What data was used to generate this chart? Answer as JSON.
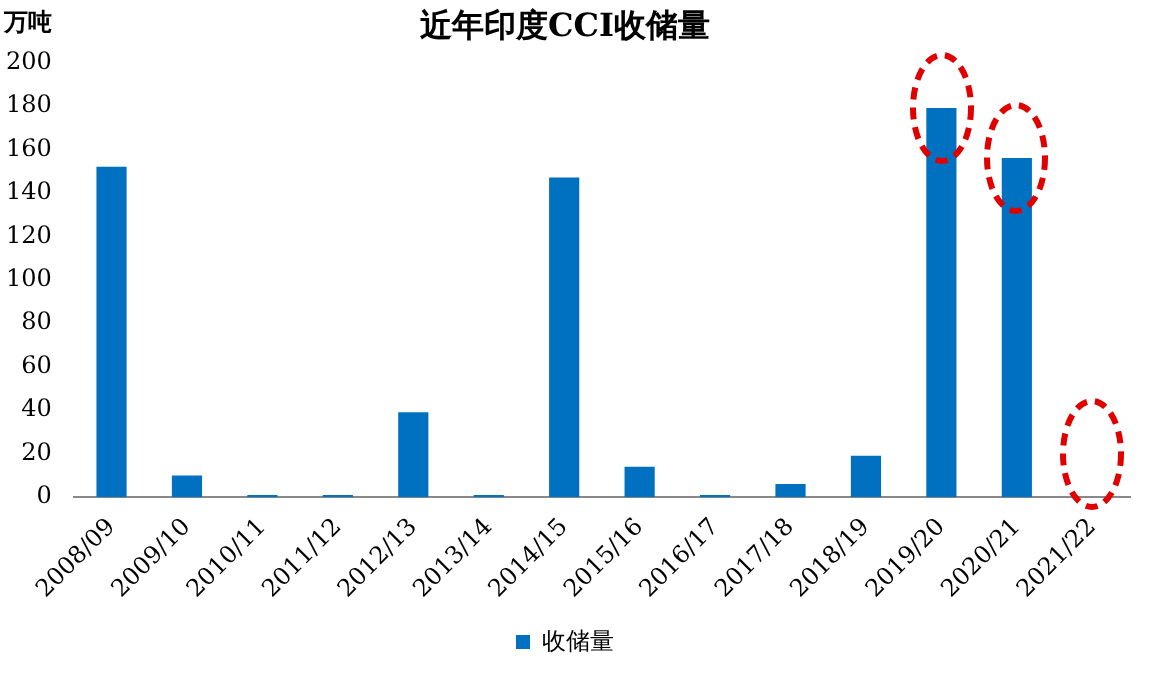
{
  "chart_data": {
    "type": "bar",
    "title": "近年印度CCI收储量",
    "ylabel": "万吨",
    "categories": [
      "2008/09",
      "2009/10",
      "2010/11",
      "2011/12",
      "2012/13",
      "2013/14",
      "2014/15",
      "2015/16",
      "2016/17",
      "2017/18",
      "2018/19",
      "2019/20",
      "2020/21",
      "2021/22"
    ],
    "series": [
      {
        "name": "收储量",
        "color": "#0070c0",
        "values": [
          152,
          10,
          1,
          1,
          39,
          1,
          147,
          14,
          1,
          6,
          19,
          179,
          156,
          0
        ]
      }
    ],
    "ylim": [
      0,
      200
    ],
    "yticks": [
      0,
      20,
      40,
      60,
      80,
      100,
      120,
      140,
      160,
      180,
      200
    ],
    "grid": false,
    "legend": "bottom"
  }
}
